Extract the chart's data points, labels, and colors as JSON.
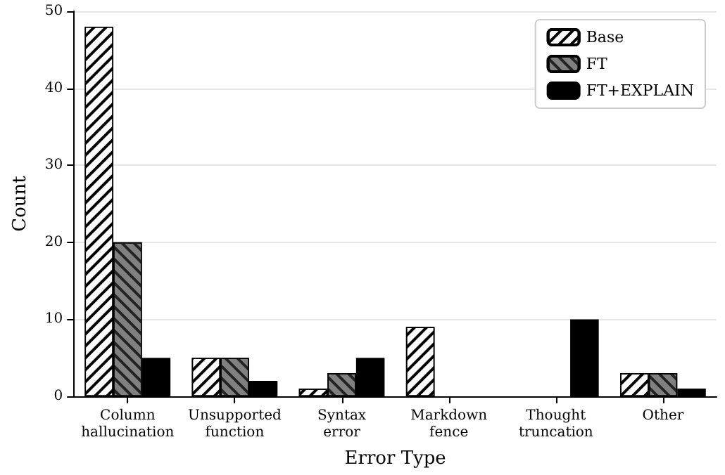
{
  "chart_data": {
    "type": "bar",
    "xlabel": "Error Type",
    "ylabel": "Count",
    "categories": [
      "Column hallucination",
      "Unsupported function",
      "Syntax error",
      "Markdown fence",
      "Thought truncation",
      "Other"
    ],
    "series": [
      {
        "name": "Base",
        "color": "#ffffff",
        "values": [
          48,
          5,
          1,
          9,
          0,
          3
        ]
      },
      {
        "name": "FT",
        "color": "#808080",
        "values": [
          20,
          5,
          3,
          0,
          0,
          3
        ]
      },
      {
        "name": "FT+EXPLAIN",
        "color": "#000000",
        "values": [
          5,
          2,
          5,
          0,
          10,
          1
        ]
      }
    ],
    "ylim": [
      0,
      50
    ],
    "yticks": [
      0,
      10,
      20,
      30,
      40,
      50
    ],
    "grid": "y",
    "legend": "top right"
  }
}
